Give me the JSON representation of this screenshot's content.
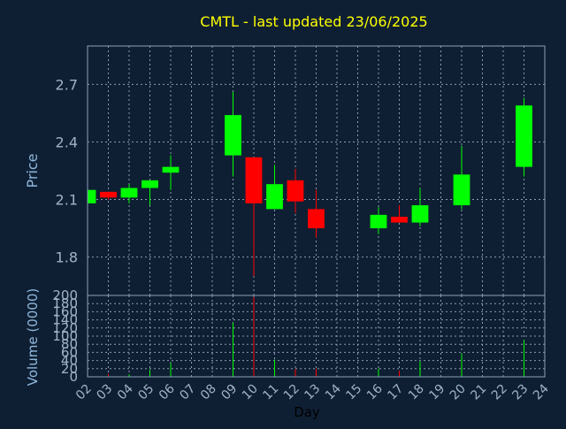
{
  "chart_data": {
    "type": "candlestick",
    "title": "CMTL - last updated 23/06/2025",
    "xlabel": "Day",
    "price_ylabel": "Price",
    "volume_ylabel": "Volume (0000)",
    "x_ticks": [
      "02",
      "03",
      "04",
      "05",
      "06",
      "07",
      "08",
      "09",
      "10",
      "11",
      "12",
      "13",
      "14",
      "15",
      "16",
      "17",
      "18",
      "19",
      "20",
      "21",
      "22",
      "23",
      "24"
    ],
    "x_range": [
      2,
      24
    ],
    "price_ylim": [
      1.6,
      2.9
    ],
    "price_yticks": [
      "1.8",
      "2.1",
      "2.4",
      "2.7"
    ],
    "price_ytick_values": [
      1.8,
      2.1,
      2.4,
      2.7
    ],
    "volume_ylim": [
      0,
      200
    ],
    "volume_yticks": [
      "0",
      "20",
      "40",
      "60",
      "80",
      "100",
      "120",
      "140",
      "160",
      "180",
      "200"
    ],
    "grid": true,
    "colors": {
      "background": "#0f1f33",
      "title": "#ffff00",
      "axis_text": "#8fb8de",
      "tick_text": "#9fb3c8",
      "frame": "#8aa0b8",
      "grid": "#8b9bb0",
      "up": "#00ff00",
      "down": "#ff0000"
    },
    "candles": [
      {
        "day": 2,
        "open": 2.08,
        "close": 2.15,
        "high": 2.15,
        "low": 2.08
      },
      {
        "day": 3,
        "open": 2.14,
        "close": 2.11,
        "high": 2.14,
        "low": 2.1
      },
      {
        "day": 4,
        "open": 2.11,
        "close": 2.16,
        "high": 2.18,
        "low": 2.08
      },
      {
        "day": 5,
        "open": 2.16,
        "close": 2.2,
        "high": 2.2,
        "low": 2.07
      },
      {
        "day": 6,
        "open": 2.24,
        "close": 2.27,
        "high": 2.33,
        "low": 2.15
      },
      {
        "day": 9,
        "open": 2.33,
        "close": 2.54,
        "high": 2.66,
        "low": 2.22
      },
      {
        "day": 10,
        "open": 2.32,
        "close": 2.08,
        "high": 2.32,
        "low": 1.7
      },
      {
        "day": 11,
        "open": 2.05,
        "close": 2.18,
        "high": 2.28,
        "low": 2.05
      },
      {
        "day": 12,
        "open": 2.2,
        "close": 2.09,
        "high": 2.26,
        "low": 2.03
      },
      {
        "day": 13,
        "open": 2.05,
        "close": 1.95,
        "high": 2.15,
        "low": 1.9
      },
      {
        "day": 16,
        "open": 1.95,
        "close": 2.02,
        "high": 2.06,
        "low": 1.92
      },
      {
        "day": 17,
        "open": 2.01,
        "close": 1.98,
        "high": 2.07,
        "low": 1.98
      },
      {
        "day": 18,
        "open": 1.98,
        "close": 2.07,
        "high": 2.16,
        "low": 1.96
      },
      {
        "day": 20,
        "open": 2.07,
        "close": 2.23,
        "high": 2.38,
        "low": 2.05
      },
      {
        "day": 23,
        "open": 2.27,
        "close": 2.59,
        "high": 2.63,
        "low": 2.22
      }
    ],
    "volume": [
      {
        "day": 2,
        "value": 2,
        "dir": "up"
      },
      {
        "day": 3,
        "value": 7,
        "dir": "down"
      },
      {
        "day": 4,
        "value": 6,
        "dir": "up"
      },
      {
        "day": 5,
        "value": 18,
        "dir": "up"
      },
      {
        "day": 6,
        "value": 34,
        "dir": "up"
      },
      {
        "day": 9,
        "value": 133,
        "dir": "up"
      },
      {
        "day": 10,
        "value": 196,
        "dir": "down"
      },
      {
        "day": 11,
        "value": 42,
        "dir": "up"
      },
      {
        "day": 12,
        "value": 19,
        "dir": "down"
      },
      {
        "day": 13,
        "value": 20,
        "dir": "down"
      },
      {
        "day": 16,
        "value": 20,
        "dir": "up"
      },
      {
        "day": 17,
        "value": 15,
        "dir": "down"
      },
      {
        "day": 18,
        "value": 38,
        "dir": "up"
      },
      {
        "day": 20,
        "value": 58,
        "dir": "up"
      },
      {
        "day": 23,
        "value": 90,
        "dir": "up"
      }
    ]
  }
}
